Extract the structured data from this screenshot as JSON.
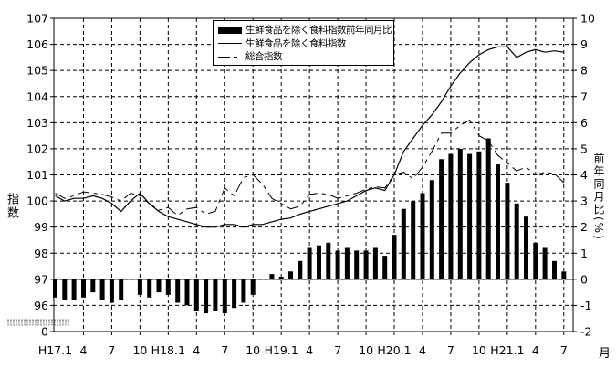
{
  "page": {
    "background": "#ffffff",
    "foreground": "#000000"
  },
  "chart_data": {
    "type": "combo",
    "title": "",
    "grid": "dashed",
    "legend_position": "top-center",
    "months": [
      "H17.1",
      "H17.2",
      "H17.3",
      "H17.4",
      "H17.5",
      "H17.6",
      "H17.7",
      "H17.8",
      "H17.9",
      "H17.10",
      "H17.11",
      "H17.12",
      "H18.1",
      "H18.2",
      "H18.3",
      "H18.4",
      "H18.5",
      "H18.6",
      "H18.7",
      "H18.8",
      "H18.9",
      "H18.10",
      "H18.11",
      "H18.12",
      "H19.1",
      "H19.2",
      "H19.3",
      "H19.4",
      "H19.5",
      "H19.6",
      "H19.7",
      "H19.8",
      "H19.9",
      "H19.10",
      "H19.11",
      "H19.12",
      "H20.1",
      "H20.2",
      "H20.3",
      "H20.4",
      "H20.5",
      "H20.6",
      "H20.7",
      "H20.8",
      "H20.9",
      "H20.10",
      "H20.11",
      "H20.12",
      "H21.1",
      "H21.2",
      "H21.3",
      "H21.4",
      "H21.5",
      "H21.6",
      "H21.7"
    ],
    "x_shown_tick_labels": [
      "H17.1",
      "4",
      "7",
      "10",
      "H18.1",
      "4",
      "7",
      "10",
      "H19.1",
      "4",
      "7",
      "10",
      "H20.1",
      "4",
      "7",
      "10",
      "H21.1",
      "4",
      "7"
    ],
    "series": [
      {
        "name": "生鮮食品を除く食料指数前年同月比",
        "type": "bar",
        "axis": "right",
        "color": "#000000",
        "values": [
          -0.7,
          -0.8,
          -0.8,
          -0.7,
          -0.5,
          -0.8,
          -0.9,
          -0.8,
          0,
          -0.6,
          -0.7,
          -0.5,
          -0.6,
          -0.9,
          -1.0,
          -1.2,
          -1.3,
          -1.2,
          -1.3,
          -1.1,
          -0.9,
          -0.6,
          0,
          0.2,
          0.1,
          0.3,
          0.7,
          1.2,
          1.3,
          1.4,
          1.1,
          1.2,
          1.1,
          1.1,
          1.2,
          0.9,
          1.7,
          2.7,
          3.0,
          3.3,
          3.8,
          4.6,
          4.8,
          5.0,
          4.8,
          4.9,
          5.4,
          4.4,
          3.7,
          2.9,
          2.4,
          1.4,
          1.2,
          0.7,
          0.3
        ]
      },
      {
        "name": "生鮮食品を除く食料指数",
        "type": "line",
        "line_style": "solid",
        "axis": "left",
        "color": "#000000",
        "values": [
          100.2,
          100,
          100.1,
          100.1,
          100.2,
          100.1,
          99.9,
          99.6,
          100,
          100.3,
          99.9,
          99.6,
          99.4,
          99.3,
          99.2,
          99.1,
          99,
          99,
          99.1,
          99.1,
          99,
          99.1,
          99.1,
          99.2,
          99.3,
          99.35,
          99.5,
          99.6,
          99.7,
          99.8,
          99.9,
          100,
          100.2,
          100.4,
          100.5,
          100.4,
          101,
          101.9,
          102.4,
          102.9,
          103.3,
          103.8,
          104.4,
          104.9,
          105.3,
          105.6,
          105.8,
          105.9,
          105.9,
          105.5,
          105.7,
          105.8,
          105.7,
          105.75,
          105.7
        ]
      },
      {
        "name": "総合指数",
        "type": "line",
        "line_style": "long-dash",
        "axis": "left",
        "color": "#000000",
        "values": [
          100.3,
          100.1,
          100.2,
          100.35,
          100.3,
          100.25,
          100.15,
          100,
          100.3,
          100.2,
          99.9,
          99.65,
          99.75,
          99.45,
          99.7,
          99.75,
          99.5,
          99.6,
          100.5,
          100.2,
          100.9,
          101,
          100.65,
          100.1,
          99.9,
          99.7,
          99.8,
          100.25,
          100.3,
          100.25,
          100.1,
          100.2,
          100.3,
          100.45,
          100.55,
          100.5,
          101,
          101.1,
          100.85,
          101.3,
          101.9,
          102.6,
          102.6,
          102.9,
          103.1,
          102.5,
          102.3,
          101.75,
          101.45,
          101.15,
          101.3,
          101,
          101.1,
          101.05,
          100.7
        ]
      }
    ],
    "left_axis": {
      "title": "指数",
      "ticks": [
        107,
        106,
        105,
        104,
        103,
        102,
        101,
        100,
        99,
        98,
        97,
        96
      ],
      "bottom_label": "0",
      "has_break_mark": true,
      "range": [
        96,
        107
      ]
    },
    "right_axis": {
      "title": "前年同月比(%)",
      "ticks": [
        10,
        9,
        8,
        7,
        6,
        5,
        4,
        3,
        2,
        1,
        0,
        -1,
        -2
      ],
      "range": [
        -2,
        10
      ]
    },
    "x_axis": {
      "unit_label": "月"
    }
  }
}
